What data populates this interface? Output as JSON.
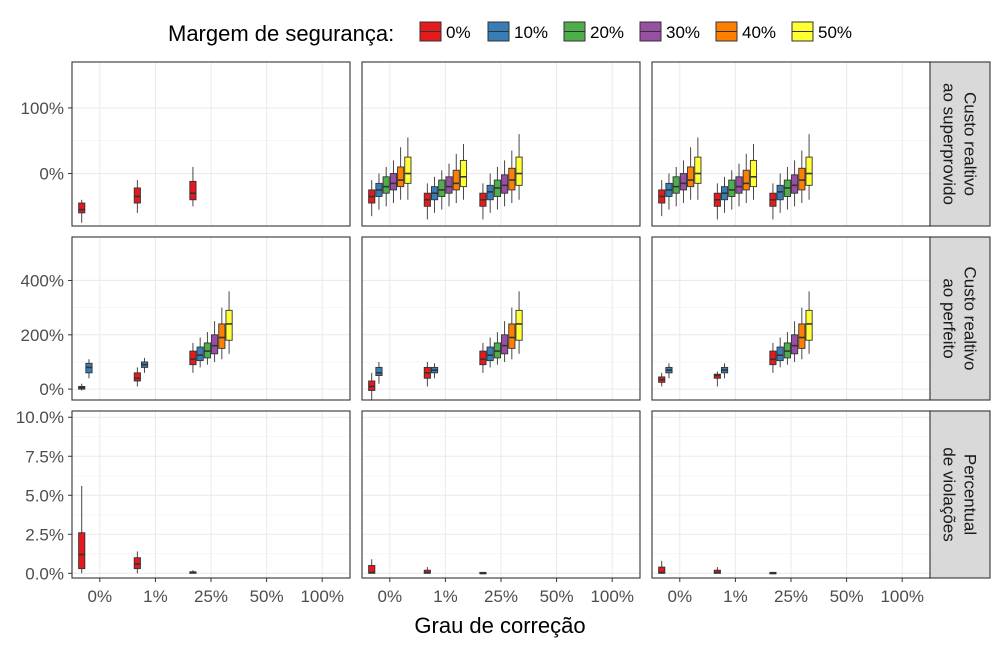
{
  "chart_data": {
    "type": "boxplot",
    "legend": {
      "title": "Margem de segurança:",
      "position": "top",
      "entries": [
        {
          "label": "0%",
          "color": "#E41A1C"
        },
        {
          "label": "10%",
          "color": "#377EB8"
        },
        {
          "label": "20%",
          "color": "#4DAF4A"
        },
        {
          "label": "30%",
          "color": "#984EA3"
        },
        {
          "label": "40%",
          "color": "#FF7F00"
        },
        {
          "label": "50%",
          "color": "#FFFF33"
        }
      ]
    },
    "xlabel": "Grau de correção",
    "categories": [
      "0%",
      "1%",
      "25%",
      "50%",
      "100%"
    ],
    "panel_columns": 3,
    "rows": [
      {
        "strip": [
          "Custo realtivo",
          "ao superprovido"
        ],
        "ylim": [
          -80,
          170
        ],
        "ticks": [
          {
            "v": 0,
            "label": "0%"
          },
          {
            "v": 100,
            "label": "100%"
          }
        ],
        "panels": [
          [
            [
              [
                -75,
                -60,
                -55,
                -45,
                -40
              ]
            ],
            [
              [
                -60,
                -45,
                -35,
                -22,
                -10
              ]
            ],
            [
              [
                -50,
                -40,
                -30,
                -12,
                10
              ]
            ]
          ],
          [
            [
              [
                -65,
                -45,
                -35,
                -25,
                -10
              ],
              [
                -55,
                -35,
                -25,
                -15,
                0
              ],
              [
                -50,
                -30,
                -20,
                -5,
                10
              ],
              [
                -45,
                -25,
                -15,
                0,
                20
              ],
              [
                -40,
                -20,
                -10,
                10,
                40
              ],
              [
                -40,
                -15,
                0,
                25,
                55
              ]
            ],
            [
              [
                -70,
                -50,
                -40,
                -30,
                -15
              ],
              [
                -60,
                -40,
                -30,
                -20,
                -5
              ],
              [
                -55,
                -35,
                -25,
                -10,
                5
              ],
              [
                -50,
                -30,
                -20,
                -5,
                15
              ],
              [
                -45,
                -25,
                -15,
                5,
                30
              ],
              [
                -40,
                -20,
                -5,
                20,
                45
              ]
            ],
            [
              [
                -70,
                -50,
                -40,
                -30,
                -15
              ],
              [
                -60,
                -40,
                -28,
                -18,
                0
              ],
              [
                -55,
                -35,
                -22,
                -10,
                10
              ],
              [
                -50,
                -30,
                -18,
                -2,
                20
              ],
              [
                -45,
                -25,
                -10,
                8,
                35
              ],
              [
                -40,
                -18,
                0,
                25,
                60
              ]
            ]
          ],
          [
            [
              [
                -65,
                -45,
                -35,
                -25,
                -10
              ],
              [
                -55,
                -35,
                -25,
                -15,
                0
              ],
              [
                -50,
                -30,
                -20,
                -5,
                10
              ],
              [
                -45,
                -25,
                -15,
                0,
                20
              ],
              [
                -40,
                -20,
                -10,
                10,
                40
              ],
              [
                -40,
                -15,
                0,
                25,
                55
              ]
            ],
            [
              [
                -70,
                -50,
                -40,
                -30,
                -15
              ],
              [
                -60,
                -40,
                -30,
                -20,
                -5
              ],
              [
                -55,
                -35,
                -25,
                -10,
                5
              ],
              [
                -50,
                -30,
                -20,
                -5,
                15
              ],
              [
                -45,
                -25,
                -15,
                5,
                30
              ],
              [
                -40,
                -20,
                -5,
                20,
                45
              ]
            ],
            [
              [
                -70,
                -50,
                -40,
                -30,
                -15
              ],
              [
                -60,
                -40,
                -28,
                -18,
                0
              ],
              [
                -55,
                -35,
                -22,
                -10,
                10
              ],
              [
                -50,
                -30,
                -18,
                -2,
                20
              ],
              [
                -45,
                -25,
                -10,
                8,
                35
              ],
              [
                -40,
                -18,
                0,
                25,
                60
              ]
            ]
          ]
        ]
      },
      {
        "strip": [
          "Custo realtivo",
          "ao perfeito"
        ],
        "ylim": [
          -40,
          560
        ],
        "ticks": [
          {
            "v": 0,
            "label": "0%"
          },
          {
            "v": 200,
            "label": "200%"
          },
          {
            "v": 400,
            "label": "400%"
          }
        ],
        "panels": [
          [
            [
              [
                -5,
                0,
                5,
                10,
                20
              ],
              [
                40,
                60,
                80,
                95,
                110
              ]
            ],
            [
              [
                10,
                30,
                40,
                60,
                80
              ],
              [
                60,
                80,
                90,
                100,
                115
              ]
            ],
            [
              [
                60,
                90,
                110,
                140,
                170
              ],
              [
                80,
                105,
                125,
                155,
                190
              ],
              [
                90,
                115,
                140,
                170,
                210
              ],
              [
                100,
                130,
                160,
                200,
                250
              ],
              [
                110,
                150,
                190,
                240,
                300
              ],
              [
                130,
                180,
                240,
                290,
                360
              ]
            ]
          ],
          [
            [
              [
                -40,
                -5,
                10,
                30,
                60
              ],
              [
                20,
                50,
                60,
                80,
                100
              ]
            ],
            [
              [
                10,
                40,
                60,
                80,
                100
              ],
              [
                40,
                60,
                70,
                80,
                95
              ]
            ],
            [
              [
                60,
                90,
                110,
                140,
                170
              ],
              [
                80,
                105,
                125,
                155,
                190
              ],
              [
                90,
                115,
                140,
                170,
                210
              ],
              [
                100,
                130,
                160,
                200,
                250
              ],
              [
                110,
                150,
                190,
                240,
                300
              ],
              [
                130,
                180,
                240,
                290,
                360
              ]
            ]
          ],
          [
            [
              [
                10,
                25,
                35,
                45,
                60
              ],
              [
                40,
                60,
                70,
                80,
                95
              ]
            ],
            [
              [
                10,
                40,
                50,
                55,
                65
              ],
              [
                40,
                60,
                70,
                80,
                95
              ]
            ],
            [
              [
                60,
                90,
                110,
                140,
                170
              ],
              [
                80,
                105,
                125,
                155,
                190
              ],
              [
                90,
                115,
                140,
                170,
                210
              ],
              [
                100,
                130,
                160,
                200,
                250
              ],
              [
                110,
                150,
                190,
                240,
                300
              ],
              [
                130,
                180,
                240,
                290,
                360
              ]
            ]
          ]
        ]
      },
      {
        "strip": [
          "Percentual",
          "de violações"
        ],
        "ylim": [
          -0.3,
          10.4
        ],
        "ticks": [
          {
            "v": 0,
            "label": "0.0%"
          },
          {
            "v": 2.5,
            "label": "2.5%"
          },
          {
            "v": 5,
            "label": "5.0%"
          },
          {
            "v": 7.5,
            "label": "7.5%"
          },
          {
            "v": 10,
            "label": "10.0%"
          }
        ],
        "panels": [
          [
            [
              [
                0,
                0.3,
                1.2,
                2.6,
                5.6
              ]
            ],
            [
              [
                0,
                0.3,
                0.6,
                1.0,
                1.4
              ]
            ],
            [
              [
                0,
                0,
                0.05,
                0.1,
                0.2
              ]
            ]
          ],
          [
            [
              [
                0,
                0,
                0.05,
                0.5,
                0.9
              ]
            ],
            [
              [
                0,
                0,
                0.05,
                0.2,
                0.4
              ]
            ],
            [
              [
                0,
                0,
                0.02,
                0.06,
                0.1
              ]
            ]
          ],
          [
            [
              [
                0,
                0,
                0.05,
                0.4,
                0.8
              ]
            ],
            [
              [
                0,
                0,
                0.05,
                0.2,
                0.4
              ]
            ],
            [
              [
                0,
                0,
                0.02,
                0.06,
                0.1
              ]
            ]
          ]
        ]
      }
    ]
  }
}
